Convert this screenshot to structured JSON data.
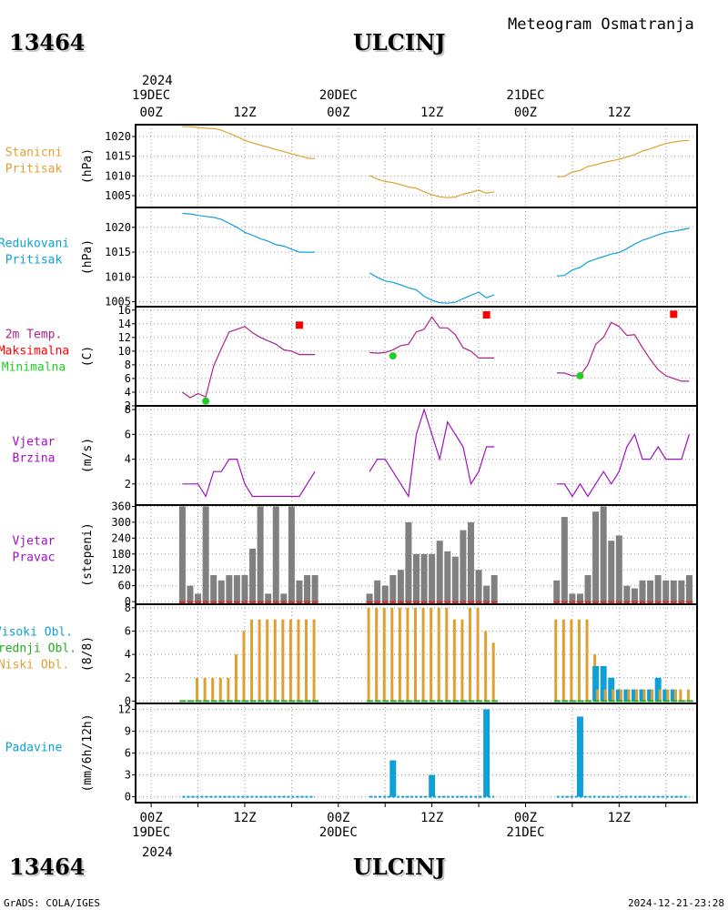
{
  "header": {
    "station_id": "13464",
    "station_name": "ULCINJ",
    "product": "Meteogram Osmatranja",
    "footer_left": "GrADS: COLA/IGES",
    "footer_right": "2024-12-21-23:28"
  },
  "time_axis": {
    "year": "2024",
    "labels_top": [
      {
        "day": "19DEC",
        "hour": "00Z"
      },
      {
        "day": "",
        "hour": "12Z"
      },
      {
        "day": "20DEC",
        "hour": "00Z"
      },
      {
        "day": "",
        "hour": "12Z"
      },
      {
        "day": "21DEC",
        "hour": "00Z"
      },
      {
        "day": "",
        "hour": "12Z"
      }
    ],
    "labels_bottom": [
      "00Z",
      "12Z",
      "00Z",
      "12Z",
      "00Z",
      "12Z"
    ],
    "labels_bottom_days": [
      "19DEC",
      "",
      "20DEC",
      "",
      "21DEC",
      ""
    ],
    "range_hours": [
      -2,
      70
    ]
  },
  "colors": {
    "pressure_station": "#e0a030",
    "pressure_reduced": "#10a0d8",
    "temperature": "#b0208a",
    "tmax": "#ff0000",
    "tmin": "#22cc22",
    "wind": "#a010c0",
    "wind_dir_bar": "#808080",
    "wind_dir_base": "#c04040",
    "cloud_high": "#10a0d8",
    "cloud_mid": "#22aa22",
    "cloud_low": "#e0a030",
    "precip": "#10a0d8"
  },
  "chart_data": [
    {
      "type": "line",
      "label_lines": [
        "Stanicni",
        "Pritisak"
      ],
      "label_color": "#e0a030",
      "ylabel": "(hPa)",
      "ylim": [
        1002,
        1023
      ],
      "yticks": [
        1005,
        1010,
        1015,
        1020
      ],
      "grid": true,
      "series": [
        {
          "x": [
            4,
            5,
            6,
            7,
            8,
            9,
            10,
            11,
            12,
            13,
            14,
            15,
            16,
            17,
            18,
            19,
            20,
            21
          ],
          "y": [
            1022.5,
            1022.5,
            1022.3,
            1022.1,
            1022.0,
            1021.6,
            1020.8,
            1020.0,
            1019.0,
            1018.4,
            1017.8,
            1017.3,
            1016.7,
            1016.2,
            1015.6,
            1015.1,
            1014.5,
            1014.4
          ]
        },
        {
          "x": [
            28,
            29,
            30,
            31,
            32,
            33,
            34,
            35,
            36,
            37,
            38,
            39,
            40,
            41,
            42,
            43,
            44
          ],
          "y": [
            1010.1,
            1009.2,
            1008.6,
            1008.3,
            1007.8,
            1007.2,
            1006.9,
            1006.0,
            1005.2,
            1004.7,
            1004.5,
            1004.6,
            1005.4,
            1005.8,
            1006.4,
            1005.6,
            1006.0
          ]
        },
        {
          "x": [
            52,
            53,
            54,
            55,
            56,
            57,
            58,
            59,
            60,
            61,
            62,
            63,
            64,
            65,
            66,
            67,
            68,
            69
          ],
          "y": [
            1009.8,
            1009.9,
            1011.0,
            1011.4,
            1012.4,
            1012.8,
            1013.4,
            1013.8,
            1014.2,
            1014.8,
            1015.4,
            1016.3,
            1016.9,
            1017.6,
            1018.2,
            1018.6,
            1018.9,
            1019.0
          ]
        }
      ]
    },
    {
      "type": "line",
      "label_lines": [
        "Redukovani",
        "Pritisak"
      ],
      "label_color": "#10a0d8",
      "ylabel": "(hPa)",
      "ylim": [
        1004,
        1024
      ],
      "yticks": [
        1005,
        1010,
        1015,
        1020
      ],
      "grid": true,
      "series": [
        {
          "x": [
            4,
            5,
            6,
            7,
            8,
            9,
            10,
            11,
            12,
            13,
            14,
            15,
            16,
            17,
            18,
            19,
            20,
            21
          ],
          "y": [
            1022.8,
            1022.7,
            1022.4,
            1022.2,
            1022.0,
            1021.6,
            1020.8,
            1020.0,
            1019.0,
            1018.4,
            1017.7,
            1017.2,
            1016.5,
            1016.2,
            1015.6,
            1015.0,
            1015.0,
            1015.0
          ]
        },
        {
          "x": [
            28,
            29,
            30,
            31,
            32,
            33,
            34,
            35,
            36,
            37,
            38,
            39,
            40,
            41,
            42,
            43,
            44
          ],
          "y": [
            1010.8,
            1009.9,
            1009.2,
            1008.9,
            1008.4,
            1007.8,
            1007.4,
            1006.1,
            1005.3,
            1004.8,
            1004.7,
            1004.9,
            1005.6,
            1006.3,
            1006.9,
            1005.8,
            1006.4
          ]
        },
        {
          "x": [
            52,
            53,
            54,
            55,
            56,
            57,
            58,
            59,
            60,
            61,
            62,
            63,
            64,
            65,
            66,
            67,
            68,
            69
          ],
          "y": [
            1010.2,
            1010.3,
            1011.4,
            1011.9,
            1013.0,
            1013.6,
            1014.1,
            1014.6,
            1014.9,
            1015.7,
            1016.6,
            1017.4,
            1017.9,
            1018.5,
            1019.0,
            1019.2,
            1019.5,
            1019.8
          ]
        }
      ]
    },
    {
      "type": "line",
      "label_lines": [
        "2m Temp.",
        "Maksimalna",
        "Minimalna"
      ],
      "label_line_colors": [
        "#b0208a",
        "#ff0000",
        "#22cc22"
      ],
      "ylabel": "(C)",
      "ylim": [
        2,
        16.5
      ],
      "yticks": [
        2,
        4,
        6,
        8,
        10,
        12,
        14,
        16
      ],
      "grid": true,
      "series": [
        {
          "x": [
            4,
            5,
            6,
            7,
            8,
            9,
            10,
            11,
            12,
            13,
            14,
            15,
            16,
            17,
            18,
            19,
            20,
            21
          ],
          "y": [
            4.0,
            3.2,
            3.8,
            3.3,
            7.8,
            10.4,
            12.8,
            13.2,
            13.6,
            12.7,
            12.0,
            11.5,
            11.0,
            10.2,
            10.0,
            9.5,
            9.5,
            9.5
          ]
        },
        {
          "x": [
            28,
            29,
            30,
            31,
            32,
            33,
            34,
            35,
            36,
            37,
            38,
            39,
            40,
            41,
            42,
            43,
            44
          ],
          "y": [
            9.8,
            9.7,
            9.8,
            10.2,
            10.8,
            11.0,
            12.8,
            13.2,
            15.0,
            13.4,
            13.4,
            12.4,
            10.5,
            10.0,
            9.0,
            9.0,
            9.0
          ]
        },
        {
          "x": [
            52,
            53,
            54,
            55,
            56,
            57,
            58,
            59,
            60,
            61,
            62,
            63,
            64,
            65,
            66,
            67,
            68,
            69
          ],
          "y": [
            6.8,
            6.8,
            6.4,
            6.4,
            8.0,
            11.0,
            12.0,
            14.2,
            13.6,
            12.3,
            12.4,
            10.5,
            8.8,
            7.3,
            6.4,
            6.0,
            5.6,
            5.6
          ]
        }
      ],
      "tmax": [
        {
          "x": 19,
          "y": 13.8
        },
        {
          "x": 43,
          "y": 15.3
        },
        {
          "x": 67,
          "y": 15.4
        }
      ],
      "tmin": [
        {
          "x": 7,
          "y": 2.7
        },
        {
          "x": 31,
          "y": 9.3
        },
        {
          "x": 55,
          "y": 6.4
        }
      ]
    },
    {
      "type": "line",
      "label_lines": [
        "Vjetar",
        "Brzina"
      ],
      "label_color": "#a010c0",
      "ylabel": "(m/s)",
      "ylim": [
        0.3,
        8.3
      ],
      "yticks": [
        2,
        4,
        6,
        8
      ],
      "grid": true,
      "series": [
        {
          "x": [
            4,
            5,
            6,
            7,
            8,
            9,
            10,
            11,
            12,
            13,
            14,
            15,
            16,
            17,
            18,
            19,
            20,
            21
          ],
          "y": [
            2,
            2,
            2,
            1,
            3,
            3,
            4,
            4,
            2,
            1,
            1,
            1,
            1,
            1,
            1,
            1,
            2,
            3
          ]
        },
        {
          "x": [
            28,
            29,
            30,
            31,
            32,
            33,
            34,
            35,
            36,
            37,
            38,
            39,
            40,
            41,
            42,
            43,
            44
          ],
          "y": [
            3,
            4,
            4,
            3,
            2,
            1,
            6,
            8,
            6,
            4,
            7,
            6,
            5,
            2,
            3,
            5,
            5
          ]
        },
        {
          "x": [
            52,
            53,
            54,
            55,
            56,
            57,
            58,
            59,
            60,
            61,
            62,
            63,
            64,
            65,
            66,
            67,
            68,
            69
          ],
          "y": [
            2,
            2,
            1,
            2,
            1,
            2,
            3,
            2,
            3,
            5,
            6,
            4,
            4,
            5,
            4,
            4,
            4,
            6
          ]
        }
      ]
    },
    {
      "type": "bar",
      "label_lines": [
        "Vjetar",
        "Pravac"
      ],
      "label_color": "#a010c0",
      "ylabel": "(stepeni)",
      "ylim": [
        -10,
        365
      ],
      "yticks": [
        0,
        60,
        120,
        180,
        240,
        300,
        360
      ],
      "grid": true,
      "x": [
        4,
        5,
        6,
        7,
        8,
        9,
        10,
        11,
        12,
        13,
        14,
        15,
        16,
        17,
        18,
        19,
        20,
        21,
        28,
        29,
        30,
        31,
        32,
        33,
        34,
        35,
        36,
        37,
        38,
        39,
        40,
        41,
        42,
        43,
        44,
        52,
        53,
        54,
        55,
        56,
        57,
        58,
        59,
        60,
        61,
        62,
        63,
        64,
        65,
        66,
        67,
        68,
        69
      ],
      "values": [
        360,
        60,
        30,
        360,
        100,
        80,
        100,
        100,
        100,
        200,
        360,
        30,
        360,
        30,
        360,
        80,
        100,
        100,
        30,
        80,
        60,
        100,
        120,
        300,
        180,
        180,
        180,
        230,
        190,
        170,
        270,
        300,
        120,
        60,
        100,
        80,
        320,
        30,
        30,
        100,
        340,
        360,
        230,
        250,
        60,
        50,
        80,
        80,
        100,
        80,
        80,
        80,
        100
      ]
    },
    {
      "type": "bar",
      "label_lines": [
        "Visoki Obl.",
        "Srednji Obl.",
        "Niski Obl."
      ],
      "label_line_colors": [
        "#10a0d8",
        "#22aa22",
        "#e0a030"
      ],
      "ylabel": "(8/8)",
      "ylim": [
        -0.2,
        8.3
      ],
      "yticks": [
        0,
        2,
        4,
        6,
        8
      ],
      "grid": true,
      "x": [
        4,
        5,
        6,
        7,
        8,
        9,
        10,
        11,
        12,
        13,
        14,
        15,
        16,
        17,
        18,
        19,
        20,
        21,
        28,
        29,
        30,
        31,
        32,
        33,
        34,
        35,
        36,
        37,
        38,
        39,
        40,
        41,
        42,
        43,
        44,
        52,
        53,
        54,
        55,
        56,
        57,
        58,
        59,
        60,
        61,
        62,
        63,
        64,
        65,
        66,
        67,
        68,
        69
      ],
      "series": [
        {
          "name": "Visoki Obl.",
          "values": [
            0,
            0,
            0,
            0,
            0,
            0,
            0,
            0,
            0,
            0,
            0,
            0,
            0,
            0,
            0,
            0,
            0,
            0,
            0,
            0,
            0,
            0,
            0,
            0,
            0,
            0,
            0,
            0,
            0,
            0,
            0,
            0,
            0,
            0,
            0,
            0,
            0,
            0,
            0,
            0,
            3,
            3,
            2,
            1,
            1,
            1,
            1,
            1,
            2,
            1,
            1,
            0,
            0
          ]
        },
        {
          "name": "Srednji Obl.",
          "values": [
            0,
            0,
            0,
            0,
            0,
            0,
            0,
            0,
            0,
            0,
            0,
            0,
            0,
            0,
            0,
            0,
            0,
            0,
            0,
            0,
            0,
            0,
            0,
            0,
            0,
            0,
            0,
            0,
            0,
            0,
            0,
            0,
            0,
            0,
            0,
            0,
            0,
            0,
            0,
            0,
            1,
            1,
            1,
            1,
            1,
            1,
            1,
            1,
            1,
            1,
            1,
            0,
            0
          ]
        },
        {
          "name": "Niski Obl.",
          "values": [
            0,
            0,
            2,
            2,
            2,
            2,
            2,
            4,
            6,
            7,
            7,
            7,
            7,
            7,
            7,
            7,
            7,
            7,
            8,
            8,
            8,
            8,
            8,
            8,
            8,
            8,
            8,
            8,
            8,
            7,
            7,
            8,
            8,
            6,
            5,
            7,
            7,
            7,
            7,
            7,
            4,
            3,
            2,
            1,
            1,
            1,
            1,
            1,
            1,
            1,
            1,
            1,
            1
          ]
        }
      ]
    },
    {
      "type": "bar",
      "label_lines": [
        "Padavine"
      ],
      "label_color": "#10a0d8",
      "ylabel": "(mm/6h/12h)",
      "ylim": [
        -0.8,
        12.8
      ],
      "yticks": [
        0,
        3,
        6,
        9,
        12
      ],
      "grid": true,
      "x": [
        31,
        36,
        43,
        55
      ],
      "values": [
        5,
        3,
        12,
        11
      ]
    }
  ]
}
